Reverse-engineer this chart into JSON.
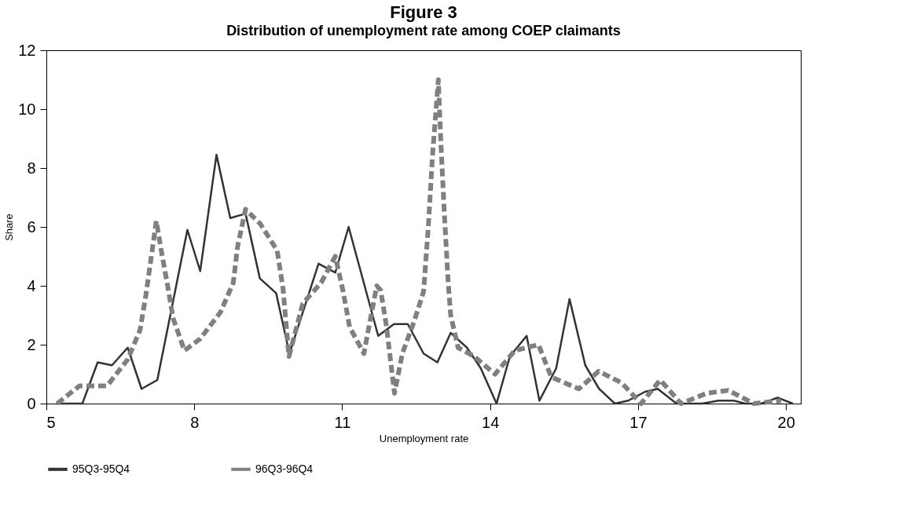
{
  "chart_data": {
    "type": "line",
    "title": "Figure 3",
    "subtitle": "Distribution of unemployment rate among COEP claimants",
    "xlabel": "Unemployment rate",
    "ylabel": "Share",
    "xlim": [
      5,
      20.3
    ],
    "xticks": [
      5,
      8,
      11,
      14,
      17,
      20
    ],
    "ylim": [
      0,
      12
    ],
    "yticks": [
      0,
      2,
      4,
      6,
      8,
      10,
      12
    ],
    "grid": false,
    "legend": "bottom",
    "marker": "none",
    "series": [
      {
        "name": "95Q3-95Q4",
        "color": "#333333",
        "line_style": "solid",
        "x": [
          5.2,
          5.73,
          6.04,
          6.33,
          6.65,
          6.93,
          7.25,
          7.86,
          8.12,
          8.45,
          8.73,
          9.04,
          9.33,
          9.66,
          9.93,
          10.52,
          10.86,
          11.13,
          11.73,
          12.05,
          12.33,
          12.65,
          12.93,
          13.2,
          13.53,
          13.81,
          14.13,
          14.4,
          14.74,
          15.0,
          15.34,
          15.61,
          15.93,
          16.21,
          16.53,
          16.8,
          17.14,
          17.4,
          17.78,
          18.3,
          18.63,
          18.94,
          19.17,
          19.5,
          19.83,
          20.14
        ],
        "values": [
          0,
          0,
          1.4,
          1.3,
          1.9,
          0.5,
          0.8,
          5.9,
          4.5,
          8.45,
          6.3,
          6.45,
          4.25,
          3.75,
          1.7,
          4.75,
          4.45,
          6.0,
          2.3,
          2.7,
          2.7,
          1.7,
          1.4,
          2.4,
          1.9,
          1.2,
          0,
          1.6,
          2.3,
          0.1,
          1.2,
          3.55,
          1.3,
          0.5,
          0,
          0.1,
          0.4,
          0.5,
          0,
          0,
          0.1,
          0.1,
          0,
          0,
          0.2,
          0
        ]
      },
      {
        "name": "96Q3-96Q4",
        "color": "#808080",
        "line_style": "dashed",
        "x": [
          5.22,
          5.67,
          6.23,
          6.65,
          6.9,
          7.02,
          7.23,
          7.33,
          7.46,
          7.57,
          7.8,
          8.12,
          8.53,
          8.79,
          8.88,
          9.04,
          9.34,
          9.68,
          9.8,
          9.92,
          10.2,
          10.57,
          10.86,
          11.02,
          11.15,
          11.44,
          11.57,
          11.7,
          11.78,
          11.9,
          12.06,
          12.22,
          12.46,
          12.65,
          12.75,
          12.83,
          12.95,
          13.0,
          13.07,
          13.15,
          13.2,
          13.35,
          13.68,
          14.1,
          14.5,
          14.98,
          15.24,
          15.8,
          16.2,
          16.67,
          17.06,
          17.45,
          17.87,
          18.39,
          18.83,
          19.35,
          19.9
        ],
        "values": [
          0,
          0.6,
          0.6,
          1.5,
          2.5,
          3.7,
          6.2,
          5.2,
          4.0,
          2.9,
          1.8,
          2.2,
          3.1,
          4.1,
          5.35,
          6.6,
          6.1,
          5.2,
          3.9,
          1.6,
          3.4,
          4.1,
          5.0,
          3.8,
          2.6,
          1.7,
          2.85,
          4.0,
          3.85,
          2.6,
          0.35,
          1.7,
          2.8,
          3.8,
          6.1,
          8.4,
          11.0,
          8.9,
          6.5,
          4.1,
          3.0,
          1.9,
          1.6,
          1.0,
          1.8,
          2.0,
          0.9,
          0.5,
          1.1,
          0.7,
          0,
          0.8,
          0,
          0.35,
          0.45,
          0,
          0.1
        ]
      }
    ]
  }
}
